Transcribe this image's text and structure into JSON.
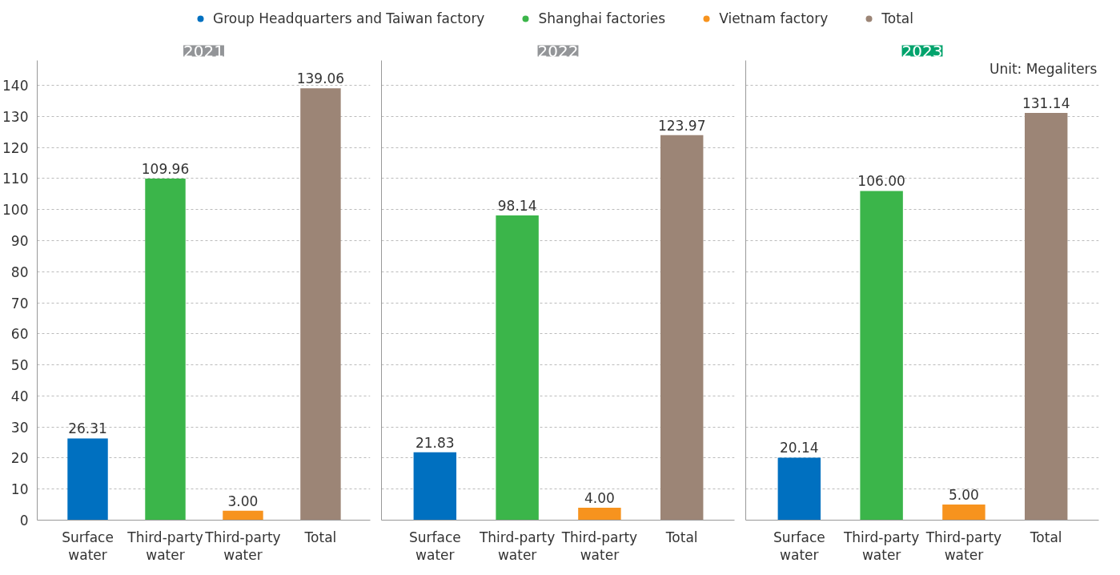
{
  "chart_data": [
    {
      "type": "bar",
      "title": "2021",
      "categories": [
        "Surface water",
        "Third-party water",
        "Third-party water",
        "Total"
      ],
      "series": [
        {
          "name": "Group Headquarters and Taiwan factory",
          "color": "#0070c0",
          "values": [
            26.31,
            null,
            null,
            null
          ],
          "value_labels": [
            "26.31",
            null,
            null,
            null
          ]
        },
        {
          "name": "Shanghai factories",
          "color": "#3bb54a",
          "values": [
            null,
            109.96,
            null,
            null
          ],
          "value_labels": [
            null,
            "109.96",
            null,
            null
          ]
        },
        {
          "name": "Vietnam factory",
          "color": "#f7931e",
          "values": [
            null,
            null,
            3.0,
            null
          ],
          "value_labels": [
            null,
            null,
            "3.00",
            null
          ]
        },
        {
          "name": "Total",
          "color": "#9c8576",
          "values": [
            null,
            null,
            null,
            139.06
          ],
          "value_labels": [
            null,
            null,
            null,
            "139.06"
          ]
        }
      ],
      "ylim": [
        0,
        148
      ],
      "yticks": [
        0,
        10,
        20,
        30,
        40,
        50,
        60,
        70,
        80,
        90,
        100,
        110,
        120,
        130,
        140
      ],
      "grid": "y",
      "legend": "top"
    },
    {
      "type": "bar",
      "title": "2022",
      "categories": [
        "Surface water",
        "Third-party water",
        "Third-party water",
        "Total"
      ],
      "series": [
        {
          "color": "#0070c0",
          "values": [
            21.83,
            null,
            null,
            null
          ],
          "value_labels": [
            "21.83",
            null,
            null,
            null
          ]
        },
        {
          "color": "#3bb54a",
          "values": [
            null,
            98.14,
            null,
            null
          ],
          "value_labels": [
            null,
            "98.14",
            null,
            null
          ]
        },
        {
          "color": "#f7931e",
          "values": [
            null,
            null,
            4.0,
            null
          ],
          "value_labels": [
            null,
            null,
            "4.00",
            null
          ]
        },
        {
          "color": "#9c8576",
          "values": [
            null,
            null,
            null,
            123.97
          ],
          "value_labels": [
            null,
            null,
            null,
            "123.97"
          ]
        }
      ],
      "ylim": [
        0,
        148
      ],
      "yticks": [
        0,
        10,
        20,
        30,
        40,
        50,
        60,
        70,
        80,
        90,
        100,
        110,
        120,
        130,
        140
      ],
      "grid": "y",
      "tick_labels": "x"
    },
    {
      "type": "bar",
      "title": "2023",
      "categories": [
        "Surface water",
        "Third-party water",
        "Third-party water",
        "Total"
      ],
      "series": [
        {
          "color": "#0070c0",
          "values": [
            20.14,
            null,
            null,
            null
          ],
          "value_labels": [
            "20.14",
            null,
            null,
            null
          ]
        },
        {
          "color": "#3bb54a",
          "values": [
            null,
            106.0,
            null,
            null
          ],
          "value_labels": [
            null,
            "106.00",
            null,
            null
          ]
        },
        {
          "color": "#f7931e",
          "values": [
            null,
            null,
            5.0,
            null
          ],
          "value_labels": [
            null,
            null,
            "5.00",
            null
          ]
        },
        {
          "color": "#9c8576",
          "values": [
            null,
            null,
            null,
            131.14
          ],
          "value_labels": [
            null,
            null,
            null,
            "131.14"
          ]
        }
      ],
      "ylim": [
        0,
        148
      ],
      "yticks": [
        0,
        10,
        20,
        30,
        40,
        50,
        60,
        70,
        80,
        90,
        100,
        110,
        120,
        130,
        140
      ],
      "grid": "y",
      "tick_labels": "x",
      "annotations": [
        "Unit: Megaliters"
      ]
    }
  ]
}
